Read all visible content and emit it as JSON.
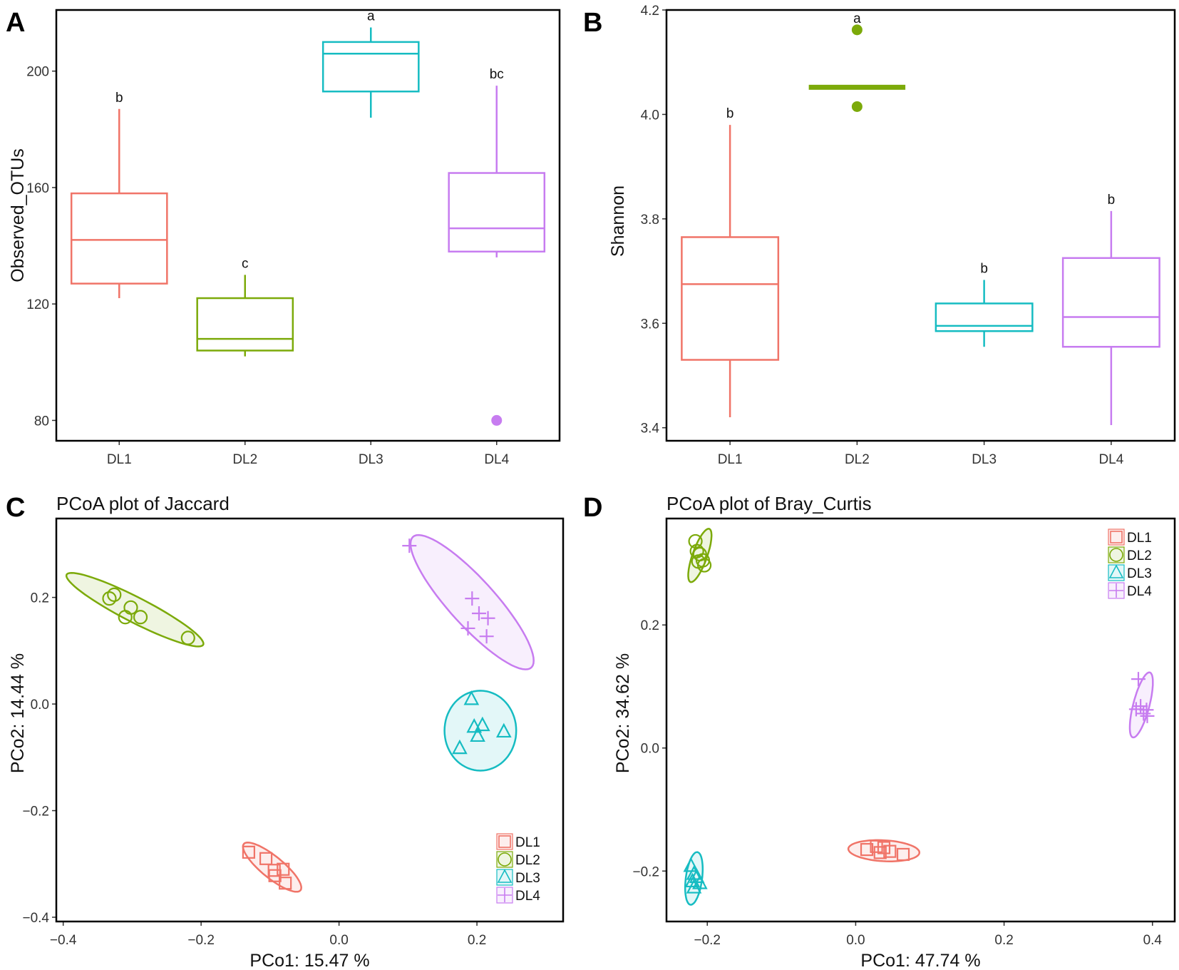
{
  "figure": {
    "panels": [
      {
        "id": "A",
        "letter": "A",
        "chart_index": 0
      },
      {
        "id": "B",
        "letter": "B",
        "chart_index": 1
      },
      {
        "id": "C",
        "letter": "C",
        "chart_index": 2
      },
      {
        "id": "D",
        "letter": "D",
        "chart_index": 3
      }
    ]
  },
  "colors": {
    "DL1": "#f07468",
    "DL2": "#7caa0a",
    "DL3": "#16bcc2",
    "DL4": "#c77cf0"
  },
  "chart_data": [
    {
      "type": "box",
      "panel": "A",
      "title": "",
      "xlabel": "",
      "ylabel": "Observed_OTUs",
      "ylim": [
        73,
        221
      ],
      "yticks": [
        "80",
        "120",
        "160",
        "200"
      ],
      "categories": [
        "DL1",
        "DL2",
        "DL3",
        "DL4"
      ],
      "boxes": [
        {
          "group": "DL1",
          "whisker_low": 122,
          "q1": 127,
          "median": 142,
          "q3": 158,
          "whisker_high": 187,
          "outliers": [],
          "sig": "b"
        },
        {
          "group": "DL2",
          "whisker_low": 102,
          "q1": 104,
          "median": 108,
          "q3": 122,
          "whisker_high": 130,
          "outliers": [],
          "sig": "c"
        },
        {
          "group": "DL3",
          "whisker_low": 184,
          "q1": 193,
          "median": 206,
          "q3": 210,
          "whisker_high": 215,
          "outliers": [],
          "sig": "a"
        },
        {
          "group": "DL4",
          "whisker_low": 136,
          "q1": 138,
          "median": 146,
          "q3": 165,
          "whisker_high": 195,
          "outliers": [
            80
          ],
          "sig": "bc"
        }
      ]
    },
    {
      "type": "box",
      "panel": "B",
      "title": "",
      "xlabel": "",
      "ylabel": "Shannon",
      "ylim": [
        3.375,
        4.2
      ],
      "yticks": [
        "3.4",
        "3.6",
        "3.8",
        "4.0",
        "4.2"
      ],
      "categories": [
        "DL1",
        "DL2",
        "DL3",
        "DL4"
      ],
      "boxes": [
        {
          "group": "DL1",
          "whisker_low": 3.42,
          "q1": 3.53,
          "median": 3.675,
          "q3": 3.765,
          "whisker_high": 3.98,
          "outliers": [],
          "sig": "b"
        },
        {
          "group": "DL2",
          "whisker_low": 4.052,
          "q1": 4.052,
          "median": 4.052,
          "q3": 4.052,
          "whisker_high": 4.052,
          "outliers": [
            4.162,
            4.015
          ],
          "sig": "a"
        },
        {
          "group": "DL3",
          "whisker_low": 3.555,
          "q1": 3.585,
          "median": 3.595,
          "q3": 3.638,
          "whisker_high": 3.683,
          "outliers": [],
          "sig": "b"
        },
        {
          "group": "DL4",
          "whisker_low": 3.405,
          "q1": 3.555,
          "median": 3.612,
          "q3": 3.725,
          "whisker_high": 3.815,
          "outliers": [],
          "sig": "b"
        }
      ]
    },
    {
      "type": "scatter",
      "panel": "C",
      "title": "PCoA plot of Jaccard",
      "xlabel": "PCo1: 15.47 %",
      "ylabel": "PCo2: 14.44 %",
      "xlim": [
        -0.41,
        0.325
      ],
      "ylim": [
        -0.408,
        0.348
      ],
      "xticks": [
        "−0.4",
        "−0.2",
        "0.0",
        "0.2"
      ],
      "yticks": [
        "−0.4",
        "−0.2",
        "0.0",
        "0.2"
      ],
      "legend": {
        "position": "bottom-right",
        "entries": [
          "DL1",
          "DL2",
          "DL3",
          "DL4"
        ]
      },
      "groups": [
        {
          "name": "DL1",
          "marker": "square",
          "points": [
            [
              -0.131,
              -0.278
            ],
            [
              -0.106,
              -0.29
            ],
            [
              -0.094,
              -0.312
            ],
            [
              -0.081,
              -0.31
            ],
            [
              -0.093,
              -0.322
            ],
            [
              -0.078,
              -0.336
            ]
          ],
          "ellipse": {
            "cx": -0.097,
            "cy": -0.306,
            "rx": 0.06,
            "ry": 0.018,
            "angle": -48
          }
        },
        {
          "name": "DL2",
          "marker": "circle",
          "points": [
            [
              -0.333,
              0.198
            ],
            [
              -0.326,
              0.205
            ],
            [
              -0.302,
              0.181
            ],
            [
              -0.31,
              0.163
            ],
            [
              -0.288,
              0.163
            ],
            [
              -0.219,
              0.124
            ]
          ],
          "ellipse": {
            "cx": -0.296,
            "cy": 0.177,
            "rx": 0.119,
            "ry": 0.022,
            "angle": -34
          }
        },
        {
          "name": "DL3",
          "marker": "triangle",
          "points": [
            [
              0.192,
              0.009
            ],
            [
              0.196,
              -0.043
            ],
            [
              0.208,
              -0.04
            ],
            [
              0.201,
              -0.06
            ],
            [
              0.239,
              -0.052
            ],
            [
              0.175,
              -0.083
            ]
          ],
          "ellipse": {
            "cx": 0.205,
            "cy": -0.05,
            "rx": 0.052,
            "ry": 0.075,
            "angle": 0
          }
        },
        {
          "name": "DL4",
          "marker": "plus",
          "points": [
            [
              0.102,
              0.297
            ],
            [
              0.193,
              0.198
            ],
            [
              0.203,
              0.17
            ],
            [
              0.216,
              0.161
            ],
            [
              0.187,
              0.142
            ],
            [
              0.214,
              0.127
            ]
          ],
          "ellipse": {
            "cx": 0.193,
            "cy": 0.191,
            "rx": 0.15,
            "ry": 0.037,
            "angle": -56
          }
        }
      ]
    },
    {
      "type": "scatter",
      "panel": "D",
      "title": "PCoA plot of Bray_Curtis",
      "xlabel": "PCo1: 47.74 %",
      "ylabel": "PCo2: 34.62 %",
      "xlim": [
        -0.255,
        0.43
      ],
      "ylim": [
        -0.282,
        0.373
      ],
      "xticks": [
        "−0.2",
        "0.0",
        "0.2",
        "0.4"
      ],
      "yticks": [
        "−0.2",
        "0.0",
        "0.2"
      ],
      "legend": {
        "position": "top-right",
        "entries": [
          "DL1",
          "DL2",
          "DL3",
          "DL4"
        ]
      },
      "groups": [
        {
          "name": "DL1",
          "marker": "square",
          "points": [
            [
              0.015,
              -0.165
            ],
            [
              0.028,
              -0.16
            ],
            [
              0.038,
              -0.162
            ],
            [
              0.046,
              -0.168
            ],
            [
              0.033,
              -0.17
            ],
            [
              0.064,
              -0.173
            ]
          ],
          "ellipse": {
            "cx": 0.038,
            "cy": -0.167,
            "rx": 0.048,
            "ry": 0.017,
            "angle": -4
          }
        },
        {
          "name": "DL2",
          "marker": "circle",
          "points": [
            [
              -0.216,
              0.336
            ],
            [
              -0.214,
              0.32
            ],
            [
              -0.21,
              0.315
            ],
            [
              -0.212,
              0.303
            ],
            [
              -0.206,
              0.305
            ],
            [
              -0.204,
              0.297
            ]
          ],
          "ellipse": {
            "cx": -0.21,
            "cy": 0.313,
            "rx": 0.045,
            "ry": 0.01,
            "angle": 74
          }
        },
        {
          "name": "DL3",
          "marker": "triangle",
          "points": [
            [
              -0.222,
              -0.192
            ],
            [
              -0.218,
              -0.205
            ],
            [
              -0.214,
              -0.21
            ],
            [
              -0.22,
              -0.217
            ],
            [
              -0.21,
              -0.22
            ],
            [
              -0.218,
              -0.227
            ]
          ],
          "ellipse": {
            "cx": -0.218,
            "cy": -0.212,
            "rx": 0.043,
            "ry": 0.011,
            "angle": 84
          }
        },
        {
          "name": "DL4",
          "marker": "plus",
          "points": [
            [
              0.381,
              0.112
            ],
            [
              0.378,
              0.063
            ],
            [
              0.384,
              0.068
            ],
            [
              0.388,
              0.056
            ],
            [
              0.392,
              0.062
            ],
            [
              0.393,
              0.052
            ]
          ],
          "ellipse": {
            "cx": 0.385,
            "cy": 0.07,
            "rx": 0.054,
            "ry": 0.011,
            "angle": 78
          }
        }
      ]
    }
  ]
}
